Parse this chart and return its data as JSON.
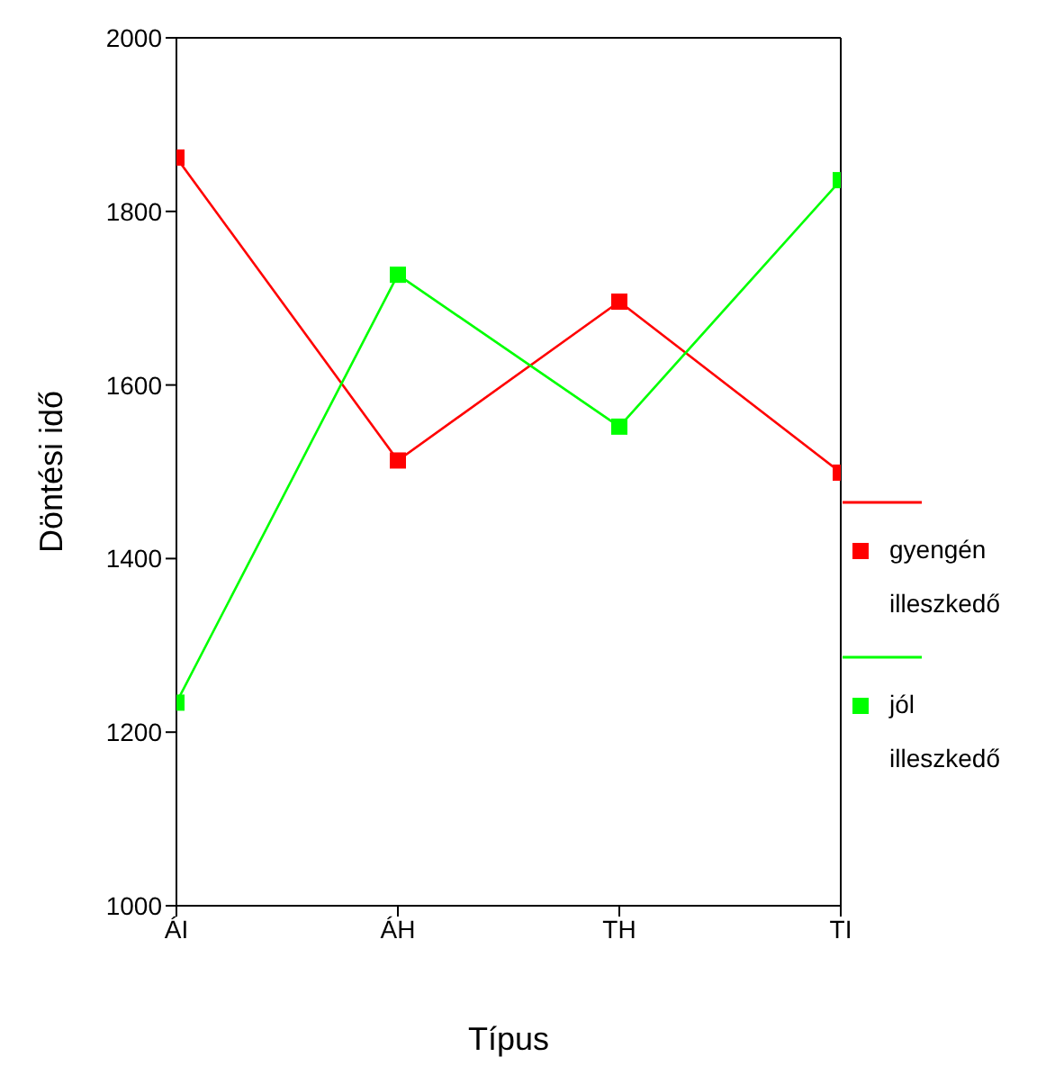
{
  "chart_data": {
    "type": "line",
    "xlabel": "Típus",
    "ylabel": "Döntési idő",
    "categories": [
      "ÁI",
      "ÁH",
      "TH",
      "TI"
    ],
    "series": [
      {
        "name": "gyengén illeszkedő",
        "color": "#ff0000",
        "values": [
          1862,
          1513,
          1696,
          1499
        ]
      },
      {
        "name": "jól illeszkedő",
        "color": "#00ff00",
        "values": [
          1234,
          1727,
          1552,
          1836
        ]
      }
    ],
    "ylim": [
      1000,
      2000
    ],
    "yticks": [
      1000,
      1200,
      1400,
      1600,
      1800,
      2000
    ],
    "grid": false,
    "legend": "right",
    "marker": "square",
    "line_style": "solid"
  }
}
